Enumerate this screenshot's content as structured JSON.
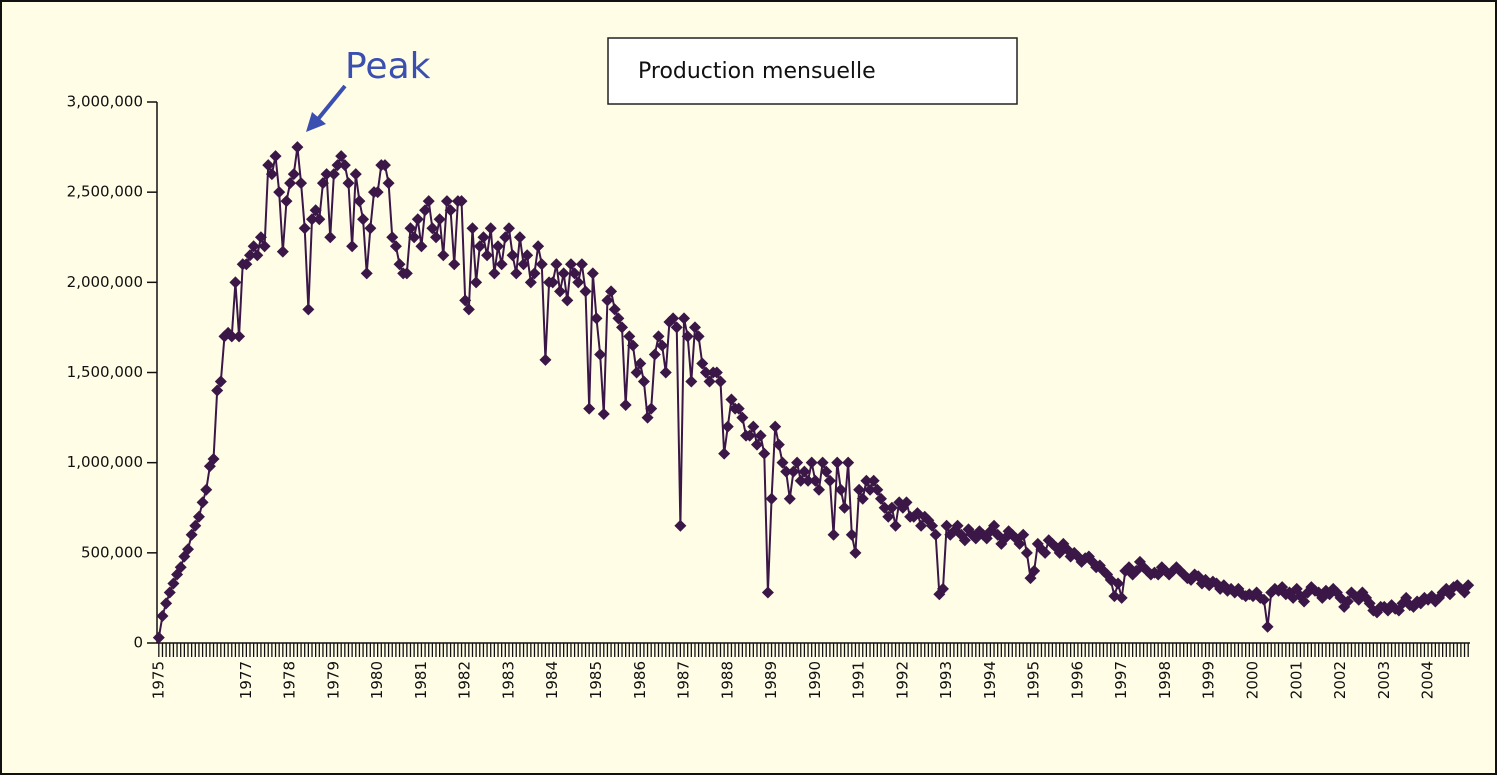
{
  "chart_data": {
    "type": "line",
    "annotation": "Peak",
    "categories": [
      "1975",
      null,
      null,
      null,
      null,
      null,
      null,
      null,
      null,
      null,
      null,
      null,
      null,
      null,
      null,
      null,
      null,
      null,
      null,
      null,
      null,
      null,
      null,
      null,
      "1977",
      null,
      null,
      null,
      null,
      null,
      null,
      null,
      null,
      null,
      null,
      null,
      "1978",
      null,
      null,
      null,
      null,
      null,
      null,
      null,
      null,
      null,
      null,
      null,
      "1979",
      null,
      null,
      null,
      null,
      null,
      null,
      null,
      null,
      null,
      null,
      null,
      "1980",
      null,
      null,
      null,
      null,
      null,
      null,
      null,
      null,
      null,
      null,
      null,
      "1981",
      null,
      null,
      null,
      null,
      null,
      null,
      null,
      null,
      null,
      null,
      null,
      "1982",
      null,
      null,
      null,
      null,
      null,
      null,
      null,
      null,
      null,
      null,
      null,
      "1983",
      null,
      null,
      null,
      null,
      null,
      null,
      null,
      null,
      null,
      null,
      null,
      "1984",
      null,
      null,
      null,
      null,
      null,
      null,
      null,
      null,
      null,
      null,
      null,
      "1985",
      null,
      null,
      null,
      null,
      null,
      null,
      null,
      null,
      null,
      null,
      null,
      "1986",
      null,
      null,
      null,
      null,
      null,
      null,
      null,
      null,
      null,
      null,
      null,
      "1987",
      null,
      null,
      null,
      null,
      null,
      null,
      null,
      null,
      null,
      null,
      null,
      "1988",
      null,
      null,
      null,
      null,
      null,
      null,
      null,
      null,
      null,
      null,
      null,
      "1989",
      null,
      null,
      null,
      null,
      null,
      null,
      null,
      null,
      null,
      null,
      null,
      "1990",
      null,
      null,
      null,
      null,
      null,
      null,
      null,
      null,
      null,
      null,
      null,
      "1991",
      null,
      null,
      null,
      null,
      null,
      null,
      null,
      null,
      null,
      null,
      null,
      "1992",
      null,
      null,
      null,
      null,
      null,
      null,
      null,
      null,
      null,
      null,
      null,
      "1993",
      null,
      null,
      null,
      null,
      null,
      null,
      null,
      null,
      null,
      null,
      null,
      "1994",
      null,
      null,
      null,
      null,
      null,
      null,
      null,
      null,
      null,
      null,
      null,
      "1995",
      null,
      null,
      null,
      null,
      null,
      null,
      null,
      null,
      null,
      null,
      null,
      "1996",
      null,
      null,
      null,
      null,
      null,
      null,
      null,
      null,
      null,
      null,
      null,
      "1997",
      null,
      null,
      null,
      null,
      null,
      null,
      null,
      null,
      null,
      null,
      null,
      "1998",
      null,
      null,
      null,
      null,
      null,
      null,
      null,
      null,
      null,
      null,
      null,
      "1999",
      null,
      null,
      null,
      null,
      null,
      null,
      null,
      null,
      null,
      null,
      null,
      "2000",
      null,
      null,
      null,
      null,
      null,
      null,
      null,
      null,
      null,
      null,
      null,
      "2001",
      null,
      null,
      null,
      null,
      null,
      null,
      null,
      null,
      null,
      null,
      null,
      "2002",
      null,
      null,
      null,
      null,
      null,
      null,
      null,
      null,
      null,
      null,
      null,
      "2003",
      null,
      null,
      null,
      null,
      null,
      null,
      null,
      null,
      null,
      null,
      null,
      "2004",
      null,
      null,
      null,
      null,
      null,
      null,
      null,
      null,
      null,
      null,
      null
    ],
    "series": [
      {
        "name": "Production mensuelle",
        "color": "#3b1748",
        "values": [
          30000,
          150000,
          220000,
          280000,
          330000,
          380000,
          420000,
          480000,
          520000,
          600000,
          650000,
          700000,
          780000,
          850000,
          980000,
          1020000,
          1400000,
          1450000,
          1700000,
          1720000,
          1700000,
          2000000,
          1700000,
          2100000,
          2100000,
          2150000,
          2200000,
          2150000,
          2250000,
          2200000,
          2650000,
          2600000,
          2700000,
          2500000,
          2170000,
          2450000,
          2550000,
          2600000,
          2750000,
          2550000,
          2300000,
          1850000,
          2350000,
          2400000,
          2350000,
          2550000,
          2600000,
          2250000,
          2600000,
          2650000,
          2700000,
          2650000,
          2550000,
          2200000,
          2600000,
          2450000,
          2350000,
          2050000,
          2300000,
          2500000,
          2500000,
          2650000,
          2650000,
          2550000,
          2250000,
          2200000,
          2100000,
          2050000,
          2050000,
          2300000,
          2250000,
          2350000,
          2200000,
          2400000,
          2450000,
          2300000,
          2250000,
          2350000,
          2150000,
          2450000,
          2400000,
          2100000,
          2450000,
          2450000,
          1900000,
          1850000,
          2300000,
          2000000,
          2200000,
          2250000,
          2150000,
          2300000,
          2050000,
          2200000,
          2100000,
          2250000,
          2300000,
          2150000,
          2050000,
          2250000,
          2100000,
          2150000,
          2000000,
          2050000,
          2200000,
          2100000,
          1570000,
          2000000,
          2000000,
          2100000,
          1950000,
          2050000,
          1900000,
          2100000,
          2050000,
          2000000,
          2100000,
          1950000,
          1300000,
          2050000,
          1800000,
          1600000,
          1270000,
          1900000,
          1950000,
          1850000,
          1800000,
          1750000,
          1320000,
          1700000,
          1650000,
          1500000,
          1550000,
          1450000,
          1250000,
          1300000,
          1600000,
          1700000,
          1650000,
          1500000,
          1780000,
          1800000,
          1750000,
          650000,
          1800000,
          1700000,
          1450000,
          1750000,
          1700000,
          1550000,
          1500000,
          1450000,
          1500000,
          1500000,
          1450000,
          1050000,
          1200000,
          1350000,
          1300000,
          1300000,
          1250000,
          1150000,
          1150000,
          1200000,
          1100000,
          1150000,
          1050000,
          280000,
          800000,
          1200000,
          1100000,
          1000000,
          950000,
          800000,
          950000,
          1000000,
          900000,
          950000,
          900000,
          1000000,
          900000,
          850000,
          1000000,
          950000,
          900000,
          600000,
          1000000,
          850000,
          750000,
          1000000,
          600000,
          500000,
          850000,
          800000,
          900000,
          850000,
          900000,
          850000,
          800000,
          750000,
          700000,
          750000,
          650000,
          780000,
          750000,
          780000,
          700000,
          700000,
          720000,
          650000,
          700000,
          680000,
          650000,
          600000,
          270000,
          300000,
          650000,
          600000,
          620000,
          650000,
          600000,
          570000,
          630000,
          600000,
          580000,
          620000,
          600000,
          580000,
          620000,
          650000,
          600000,
          550000,
          580000,
          620000,
          600000,
          580000,
          550000,
          600000,
          500000,
          360000,
          400000,
          550000,
          520000,
          500000,
          570000,
          550000,
          530000,
          500000,
          550000,
          520000,
          480000,
          500000,
          480000,
          450000,
          470000,
          480000,
          450000,
          420000,
          430000,
          400000,
          380000,
          350000,
          260000,
          330000,
          250000,
          400000,
          420000,
          380000,
          400000,
          450000,
          420000,
          400000,
          380000,
          390000,
          380000,
          420000,
          400000,
          380000,
          400000,
          420000,
          400000,
          380000,
          360000,
          350000,
          380000,
          370000,
          330000,
          350000,
          320000,
          340000,
          330000,
          300000,
          320000,
          290000,
          300000,
          280000,
          300000,
          270000,
          260000,
          270000,
          260000,
          280000,
          250000,
          240000,
          90000,
          280000,
          300000,
          290000,
          310000,
          270000,
          280000,
          250000,
          300000,
          260000,
          230000,
          280000,
          310000,
          290000,
          280000,
          250000,
          290000,
          270000,
          300000,
          280000,
          250000,
          200000,
          230000,
          280000,
          260000,
          240000,
          280000,
          250000,
          220000,
          180000,
          170000,
          200000,
          200000,
          180000,
          210000,
          190000,
          180000,
          220000,
          250000,
          210000,
          200000,
          230000,
          220000,
          250000,
          240000,
          260000,
          230000,
          250000,
          280000,
          300000,
          270000,
          310000,
          320000,
          300000,
          280000,
          320000
        ]
      }
    ],
    "ylim": [
      0,
      3000000
    ],
    "yticks": [
      0,
      {
        "value": 500000,
        "label": "500,000"
      },
      {
        "value": 1000000,
        "label": "1,000,000"
      },
      {
        "value": 1500000,
        "label": "1,500,000"
      },
      {
        "value": 2000000,
        "label": "2,000,000"
      },
      {
        "value": 2500000,
        "label": "2,500,000"
      },
      {
        "value": 3000000,
        "label": "3,000,000"
      }
    ],
    "grid": false
  }
}
